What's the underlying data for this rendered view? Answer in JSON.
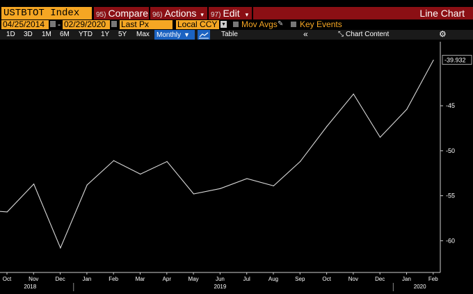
{
  "toolbar": {
    "ticker": "USTBTOT Index",
    "compare": {
      "num": "95)",
      "label": "Compare"
    },
    "actions": {
      "num": "96)",
      "label": "Actions"
    },
    "edit": {
      "num": "97)",
      "label": "Edit"
    },
    "chart_title": "Line Chart"
  },
  "fields": {
    "start_date": "04/25/2014",
    "end_date": "02/29/2020",
    "field": "Last Px",
    "currency": "Local CCY",
    "mov_avgs": "Mov Avgs",
    "key_events": "Key Events"
  },
  "ranges": {
    "items": [
      "1D",
      "3D",
      "1M",
      "6M",
      "YTD",
      "1Y",
      "5Y",
      "Max"
    ],
    "period": "Monthly",
    "table": "Table",
    "chart_content": "Chart Content"
  },
  "colors": {
    "accent": "#f5a623",
    "menu_bar": "#8b0f14",
    "selected": "#1c63c2",
    "line": "#d9d9d9"
  },
  "chart_data": {
    "type": "line",
    "x": [
      "Sep 2018",
      "Oct 2018",
      "Nov 2018",
      "Dec 2018",
      "Jan 2019",
      "Feb 2019",
      "Mar 2019",
      "Apr 2019",
      "May 2019",
      "Jun 2019",
      "Jul 2019",
      "Aug 2019",
      "Sep 2019",
      "Oct 2019",
      "Nov 2019",
      "Dec 2019",
      "Jan 2020",
      "Feb 2020"
    ],
    "y": [
      -56.6,
      -56.8,
      -53.7,
      -60.8,
      -53.8,
      -51.1,
      -52.6,
      -51.2,
      -54.8,
      -54.2,
      -53.1,
      -53.9,
      -51.2,
      -47.3,
      -43.7,
      -48.5,
      -45.4,
      -39.932
    ],
    "month_ticks": [
      "Oct",
      "Nov",
      "Dec",
      "Jan",
      "Feb",
      "Mar",
      "Apr",
      "May",
      "Jun",
      "Jul",
      "Aug",
      "Sep",
      "Oct",
      "Nov",
      "Dec",
      "Jan",
      "Feb"
    ],
    "year_ticks": [
      "2018",
      "2019",
      "2020"
    ],
    "y_ticks": [
      "-45",
      "-50",
      "-55",
      "-60"
    ],
    "last_value_label": "-39.932",
    "ylim": [
      -62.6,
      -38.5
    ]
  }
}
